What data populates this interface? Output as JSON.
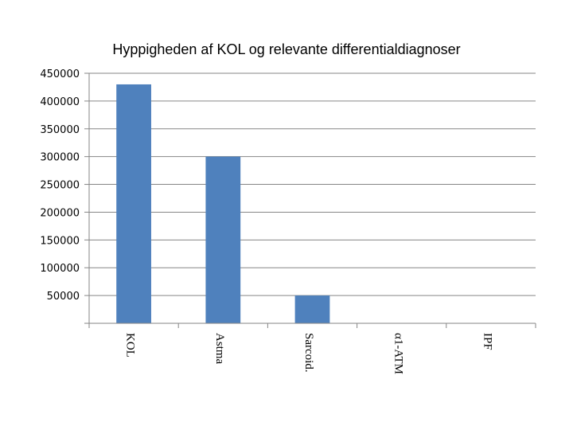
{
  "chart_data": {
    "type": "bar",
    "title": "Hyppigheden af KOL og relevante differentialdiagnoser",
    "xlabel": "",
    "ylabel": "",
    "categories": [
      "KOL",
      "Astma",
      "Sarcoid.",
      "α1-ATM",
      "IPF"
    ],
    "values": [
      430000,
      300000,
      50000,
      0,
      0
    ],
    "ylim": [
      0,
      450000
    ],
    "yticks": [
      450000,
      400000,
      350000,
      300000,
      250000,
      200000,
      150000,
      100000,
      50000
    ],
    "grid": true,
    "legend": "none",
    "bar_color": "#4f81bd",
    "grid_color": "#868686"
  }
}
